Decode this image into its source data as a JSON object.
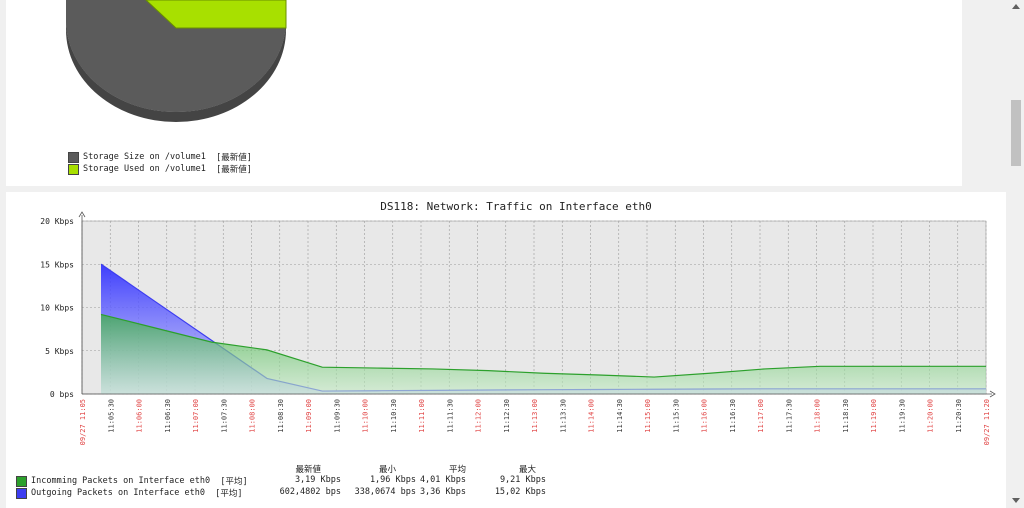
{
  "pie_panel": {
    "legend": [
      {
        "label": "Storage Size on /volume1",
        "tag": "[最新値]",
        "color": "#5b5b5b"
      },
      {
        "label": "Storage Used on /volume1",
        "tag": "[最新値]",
        "color": "#a8e000"
      }
    ]
  },
  "chart_data": {
    "type": "area",
    "title": "DS118: Network: Traffic on Interface eth0",
    "y_tick_labels": [
      "20 Kbps",
      "15 Kbps",
      "10 Kbps",
      "5 Kbps",
      "0 bps"
    ],
    "ylim": [
      0,
      20
    ],
    "y_unit": "Kbps",
    "x": [
      "11:05:00",
      "11:06:00",
      "11:07:00",
      "11:08:00",
      "11:09:00",
      "11:10:00",
      "11:11:00",
      "11:12:00",
      "11:13:00",
      "11:14:00",
      "11:15:00",
      "11:16:00",
      "11:17:00",
      "11:18:00",
      "11:19:00",
      "11:20:00",
      "11:20:45"
    ],
    "x_tick_labels": [
      "09/27 11:05",
      "11:05:30",
      "11:06:00",
      "11:06:30",
      "11:07:00",
      "11:07:30",
      "11:08:00",
      "11:08:30",
      "11:09:00",
      "11:09:30",
      "11:10:00",
      "11:10:30",
      "11:11:00",
      "11:11:30",
      "11:12:00",
      "11:12:30",
      "11:13:00",
      "11:13:30",
      "11:14:00",
      "11:14:30",
      "11:15:00",
      "11:15:30",
      "11:16:00",
      "11:16:30",
      "11:17:00",
      "11:17:30",
      "11:18:00",
      "11:18:30",
      "11:19:00",
      "11:19:30",
      "11:20:00",
      "11:20:30",
      "09/27 11:20"
    ],
    "series": [
      {
        "name": "Incomming Packets on Interface eth0",
        "color": "#2ca02c",
        "values": [
          9.2,
          7.6,
          6.0,
          5.1,
          3.1,
          3.0,
          2.9,
          2.7,
          2.4,
          2.2,
          1.96,
          2.4,
          2.9,
          3.2,
          3.2,
          3.2,
          3.2
        ]
      },
      {
        "name": "Outgoing Packets on Interface eth0",
        "color": "#3d3df0",
        "values": [
          15.02,
          10.6,
          6.2,
          1.8,
          0.34,
          0.38,
          0.42,
          0.46,
          0.5,
          0.52,
          0.55,
          0.58,
          0.6,
          0.6,
          0.6,
          0.6,
          0.6
        ]
      }
    ],
    "grid": true,
    "legend_position": "bottom-left"
  },
  "stats": {
    "headers": [
      "最新値",
      "最小",
      "平均",
      "最大"
    ],
    "rows": [
      {
        "label": "Incomming Packets on Interface eth0",
        "func": "[平均]",
        "color": "#2ca02c",
        "values": [
          "3,19 Kbps",
          "1,96 Kbps",
          "4,01 Kbps",
          "9,21 Kbps"
        ]
      },
      {
        "label": "Outgoing Packets on Interface eth0",
        "func": "[平均]",
        "color": "#3d3df0",
        "values": [
          "602,4802 bps",
          "338,0674 bps",
          "3,36 Kbps",
          "15,02 Kbps"
        ]
      }
    ]
  }
}
